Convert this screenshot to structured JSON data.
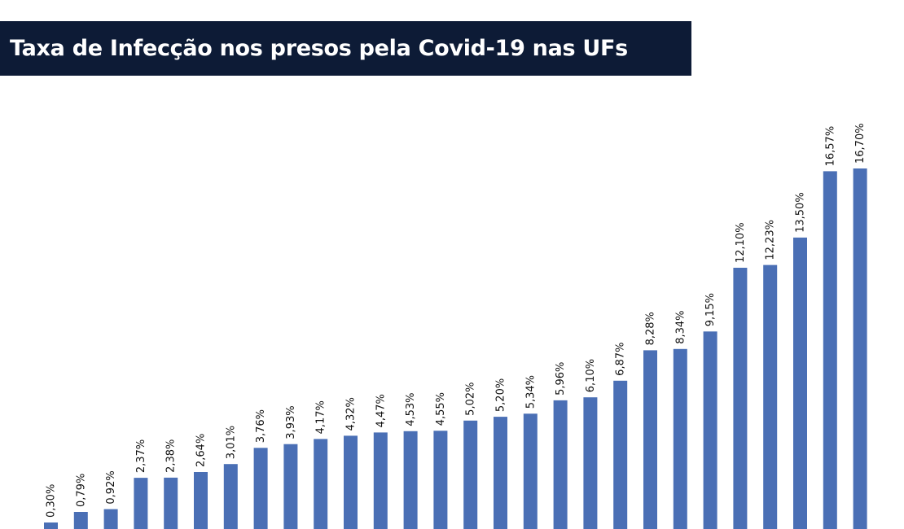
{
  "chart_data": {
    "type": "bar",
    "title": "Taxa de Infecção nos presos pela Covid-19 nas UFs",
    "xlabel": "",
    "ylabel": "",
    "ylim": [
      0,
      16.7
    ],
    "grid": false,
    "legend": "none",
    "bar_color": "#4a6fb5",
    "values": [
      0.3,
      0.79,
      0.92,
      2.37,
      2.38,
      2.64,
      3.01,
      3.76,
      3.93,
      4.17,
      4.32,
      4.47,
      4.53,
      4.55,
      5.02,
      5.2,
      5.34,
      5.96,
      6.1,
      6.87,
      8.28,
      8.34,
      9.15,
      12.1,
      12.23,
      13.5,
      16.57,
      16.7
    ],
    "labels": [
      "0,30%",
      "0,79%",
      "0,92%",
      "2,37%",
      "2,38%",
      "2,64%",
      "3,01%",
      "3,76%",
      "3,93%",
      "4,17%",
      "4,32%",
      "4,47%",
      "4,53%",
      "4,55%",
      "5,02%",
      "5,20%",
      "5,34%",
      "5,96%",
      "6,10%",
      "6,87%",
      "8,28%",
      "8,34%",
      "9,15%",
      "12,10%",
      "12,23%",
      "13,50%",
      "16,57%",
      "16,70%"
    ]
  },
  "colors": {
    "title_bg": "#0d1b36",
    "title_text": "#ffffff",
    "bar": "#4a6fb5"
  }
}
